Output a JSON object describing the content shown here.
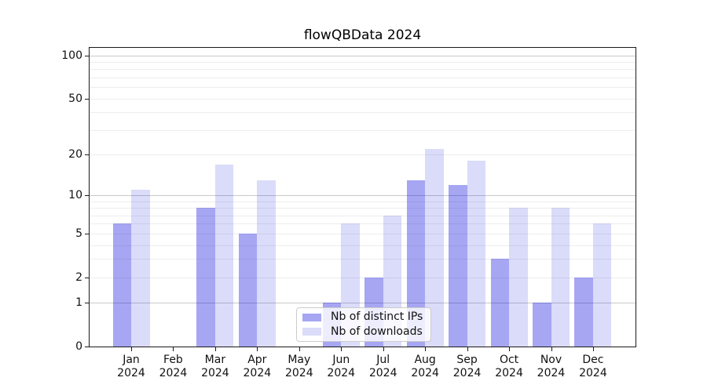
{
  "chart_data": {
    "type": "bar",
    "title": "flowQBData 2024",
    "categories": [
      "Jan",
      "Feb",
      "Mar",
      "Apr",
      "May",
      "Jun",
      "Jul",
      "Aug",
      "Sep",
      "Oct",
      "Nov",
      "Dec"
    ],
    "year_label": "2024",
    "series": [
      {
        "name": "Nb of distinct IPs",
        "color": "rgba(0,0,220,0.35)",
        "values": [
          6,
          0,
          8,
          5,
          0,
          1,
          2,
          13,
          12,
          3,
          1,
          2
        ]
      },
      {
        "name": "Nb of downloads",
        "color": "rgba(0,0,220,0.14)",
        "values": [
          11,
          0,
          17,
          13,
          0,
          6,
          7,
          22,
          18,
          8,
          8,
          6
        ]
      }
    ],
    "xlabel": "",
    "ylabel": "",
    "yticks": [
      0,
      1,
      2,
      5,
      10,
      20,
      50,
      100
    ],
    "yscale": "log1p",
    "ylim": [
      0,
      113
    ],
    "grid": true,
    "legend_position": "lower-center",
    "colors": {
      "major_grid": "#c9c9c9",
      "minor_grid": "#ededed",
      "spine": "#1a1a1a",
      "text": "#111111",
      "legend_border": "#cccccc",
      "legend_bg": "rgba(255,255,255,0.8)"
    }
  }
}
